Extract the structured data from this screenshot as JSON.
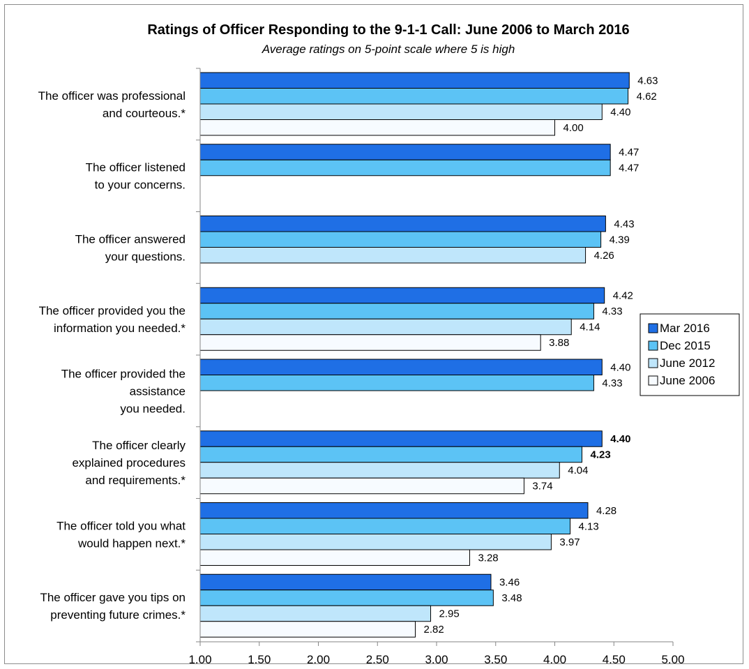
{
  "chart_data": {
    "type": "bar",
    "orientation": "horizontal",
    "title": "Ratings of Officer Responding to the 9-1-1 Call: June 2006 to March 2016",
    "subtitle": "Average ratings on 5-point scale where 5 is high",
    "xlim": [
      1.0,
      5.0
    ],
    "x_ticks": [
      "1.00",
      "1.50",
      "2.00",
      "2.50",
      "3.00",
      "3.50",
      "4.00",
      "4.50",
      "5.00"
    ],
    "grid": false,
    "legend_position": "right",
    "categories": [
      [
        "The officer was professional",
        "and courteous.*"
      ],
      [
        "The officer listened",
        "to your concerns."
      ],
      [
        "The officer answered",
        "your questions."
      ],
      [
        "The officer provided you the",
        "information you needed.*"
      ],
      [
        "The officer provided the",
        "assistance",
        "you needed."
      ],
      [
        "The officer clearly",
        "explained procedures",
        "and requirements.*"
      ],
      [
        "The officer told you what",
        "would happen next.*"
      ],
      [
        "The officer gave you tips on",
        "preventing future crimes.*"
      ]
    ],
    "series": [
      {
        "name": "Mar 2016",
        "color": "#1f6fe5",
        "values": [
          4.63,
          4.47,
          4.43,
          4.42,
          4.4,
          4.4,
          4.28,
          3.46
        ],
        "labels": [
          "4.63",
          "4.47",
          "4.43",
          "4.42",
          "4.40",
          "4.40",
          "4.28",
          "3.46"
        ]
      },
      {
        "name": "Dec 2015",
        "color": "#5cc3f5",
        "values": [
          4.62,
          4.47,
          4.39,
          4.33,
          4.33,
          4.23,
          4.13,
          3.48
        ],
        "labels": [
          "4.62",
          "4.47",
          "4.39",
          "4.33",
          "4.33",
          "4.23",
          "4.13",
          "3.48"
        ]
      },
      {
        "name": "June 2012",
        "color": "#bfe6fb",
        "values": [
          4.4,
          null,
          4.26,
          4.14,
          null,
          4.04,
          3.97,
          2.95
        ],
        "labels": [
          "4.40",
          null,
          "4.26",
          "4.14",
          null,
          "4.04",
          "3.97",
          "2.95"
        ]
      },
      {
        "name": "June 2006",
        "color": "#f7fbff",
        "values": [
          4.0,
          null,
          null,
          3.88,
          null,
          3.74,
          3.28,
          2.82
        ],
        "labels": [
          "4.00",
          null,
          null,
          "3.88",
          null,
          "3.74",
          "3.28",
          "2.82"
        ]
      }
    ],
    "bold_labels": [
      {
        "series": 0,
        "category": 5
      },
      {
        "series": 1,
        "category": 5
      }
    ]
  }
}
